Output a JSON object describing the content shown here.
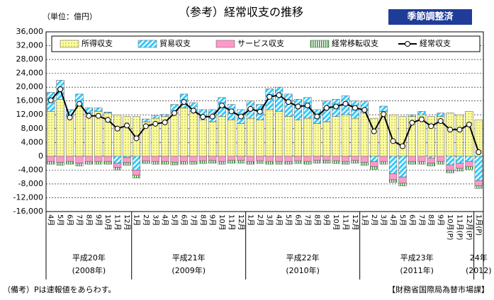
{
  "chart_data": {
    "type": "stacked_bar_line",
    "title": "（参考）経常収支の推移",
    "unit": "（単位：億円）",
    "badge": "季節調整済",
    "note": "（備考）Pは速報値をあらわす。",
    "source": "【財務省国際局為替市場課】",
    "categories": [
      "4月",
      "5月",
      "6月",
      "7月",
      "8月",
      "9月",
      "10月",
      "11月",
      "12月",
      "1月",
      "2月",
      "3月",
      "4月",
      "5月",
      "6月",
      "7月",
      "8月",
      "9月",
      "10月",
      "11月",
      "12月",
      "1月",
      "2月",
      "3月",
      "4月",
      "5月",
      "6月",
      "7月",
      "8月",
      "9月",
      "10月",
      "11月",
      "12月",
      "1月",
      "2月",
      "3月",
      "4月",
      "5月",
      "6月",
      "7月",
      "8月",
      "9月",
      "10月(P)",
      "11月(P)",
      "12月(P)",
      "1月(P)"
    ],
    "year_groups": [
      {
        "label": "平成20年",
        "sub": "(2008年)"
      },
      {
        "label": "平成21年",
        "sub": "(2009年)"
      },
      {
        "label": "平成22年",
        "sub": "(2010年)"
      },
      {
        "label": "平成23年",
        "sub": "(2011年)"
      },
      {
        "label": "24年",
        "sub": "(2012)"
      }
    ],
    "series": [
      {
        "name": "所得収支",
        "color": "#ffff99",
        "values": [
          13000,
          16500,
          11500,
          14500,
          12500,
          13000,
          12500,
          12000,
          11500,
          11500,
          10000,
          11000,
          11500,
          12500,
          14000,
          13000,
          10500,
          10000,
          11500,
          10500,
          9500,
          11000,
          10500,
          13500,
          13000,
          11500,
          10500,
          11000,
          9500,
          10000,
          11500,
          12000,
          11000,
          12500,
          11000,
          13000,
          12000,
          11500,
          11500,
          12000,
          11500,
          11500,
          12500,
          12000,
          13000,
          10500
        ]
      },
      {
        "name": "貿易収支",
        "color": "#33ccff",
        "values": [
          5500,
          5500,
          2000,
          3500,
          1500,
          1000,
          300,
          -2000,
          -300,
          -4000,
          800,
          700,
          600,
          2500,
          4000,
          2500,
          3000,
          3500,
          5500,
          4500,
          4000,
          5000,
          4500,
          6000,
          7000,
          6500,
          6000,
          6000,
          4000,
          6000,
          5000,
          5500,
          5000,
          3500,
          -1500,
          1500,
          -5000,
          -6000,
          500,
          1000,
          -500,
          1000,
          -2500,
          -2000,
          -1500,
          -7000
        ]
      },
      {
        "name": "サービス収支",
        "color": "#ff99cc",
        "values": [
          -1500,
          -1800,
          -1500,
          -2000,
          -1500,
          -1500,
          -1500,
          -1200,
          -1500,
          -1500,
          -1300,
          -1500,
          -1500,
          -1700,
          -1500,
          -1500,
          -1300,
          -1200,
          -1500,
          -1200,
          -1200,
          -1500,
          -1300,
          -1500,
          -1500,
          -1500,
          -1300,
          -1500,
          -1200,
          -1200,
          -1300,
          -1500,
          -1200,
          -1800,
          -1500,
          -1500,
          -1800,
          -1800,
          -1500,
          -1500,
          -1500,
          -1500,
          -1500,
          -1500,
          -1500,
          -1500
        ]
      },
      {
        "name": "経常移転収支",
        "color": "#339933",
        "values": [
          -800,
          -800,
          -800,
          -800,
          -800,
          -800,
          -800,
          -800,
          -800,
          -800,
          -800,
          -800,
          -800,
          -800,
          -800,
          -800,
          -800,
          -800,
          -800,
          -800,
          -800,
          -800,
          -800,
          -800,
          -800,
          -800,
          -800,
          -800,
          -800,
          -800,
          -800,
          -800,
          -800,
          -800,
          -800,
          -800,
          -800,
          -800,
          -800,
          -800,
          -800,
          -800,
          -800,
          -800,
          -800,
          -800
        ]
      },
      {
        "name": "経常収支",
        "type": "line",
        "color": "#000000",
        "values": [
          16200,
          19400,
          11200,
          15200,
          11700,
          11700,
          10500,
          8000,
          8900,
          5200,
          8700,
          9400,
          9800,
          12500,
          15700,
          13200,
          11400,
          11500,
          14700,
          13000,
          11500,
          13700,
          12900,
          17200,
          17700,
          15700,
          14400,
          14700,
          11500,
          14000,
          14400,
          15200,
          14000,
          13400,
          7200,
          12200,
          4400,
          2900,
          9700,
          10700,
          8700,
          10200,
          7700,
          7700,
          9200,
          1200
        ]
      }
    ],
    "ylim": [
      -16000,
      36000
    ],
    "yticks": [
      {
        "value": -16000,
        "label": "-16,000"
      },
      {
        "value": -12000,
        "label": "-12,000"
      },
      {
        "value": -8000,
        "label": "-8,000"
      },
      {
        "value": -4000,
        "label": "-4,000"
      },
      0,
      {
        "value": 4000,
        "label": "4,000"
      },
      {
        "value": 8000,
        "label": "8,000"
      },
      {
        "value": 12000,
        "label": "12,000"
      },
      {
        "value": 16000,
        "label": "16,000"
      },
      {
        "value": 20000,
        "label": "20,000"
      },
      {
        "value": 24000,
        "label": "24,000"
      },
      {
        "value": 28000,
        "label": "28,000"
      },
      {
        "value": 32000,
        "label": "32,000"
      },
      {
        "value": 36000,
        "label": "36,000"
      }
    ],
    "grid": true
  }
}
